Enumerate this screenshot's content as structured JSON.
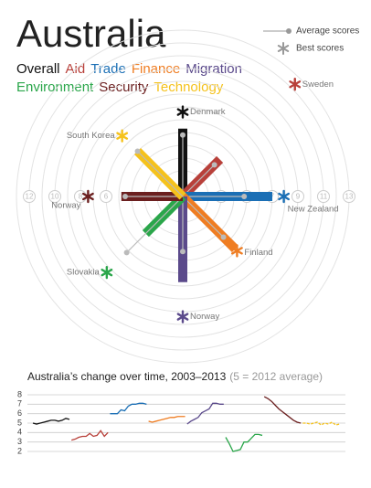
{
  "chart_data": [
    {
      "type": "radial",
      "title": "Australia",
      "legend": {
        "average": "Average scores",
        "best": "Best scores"
      },
      "rings": [
        1,
        2,
        3,
        4,
        5,
        6,
        7,
        8,
        9,
        10,
        11,
        12,
        13
      ],
      "left_ticks": [
        12,
        10,
        8,
        6
      ],
      "right_ticks": [
        3,
        5,
        7,
        9,
        11,
        13
      ],
      "categories": [
        {
          "name": "Overall",
          "color": "#111111",
          "score": 5.3,
          "average": 4.8,
          "best": 6.6,
          "best_country": "Denmark"
        },
        {
          "name": "Aid",
          "color": "#b8403a",
          "score": 4.1,
          "average": 3.5,
          "best": 12.4,
          "best_country": "Sweden"
        },
        {
          "name": "Trade",
          "color": "#1b6fb5",
          "score": 7.0,
          "average": 4.8,
          "best": 7.9,
          "best_country": "New Zealand"
        },
        {
          "name": "Finance",
          "color": "#ef7d22",
          "score": 5.8,
          "average": 4.5,
          "best": 6.0,
          "best_country": "Finland"
        },
        {
          "name": "Migration",
          "color": "#5b4a8b",
          "score": 6.7,
          "average": 4.3,
          "best": 9.4,
          "best_country": "Norway"
        },
        {
          "name": "Environment",
          "color": "#2aa64a",
          "score": 4.1,
          "average": 6.2,
          "best": 8.4,
          "best_country": "Slovakia"
        },
        {
          "name": "Security",
          "color": "#6b1f1f",
          "score": 4.8,
          "average": 4.5,
          "best": 7.4,
          "best_country": "Norway"
        },
        {
          "name": "Technology",
          "color": "#f5c21c",
          "score": 5.0,
          "average": 5.0,
          "best": 6.7,
          "best_country": "South Korea"
        }
      ]
    },
    {
      "type": "line",
      "title": "Australia’s change over time, 2003–2013",
      "subtitle": "(5 = 2012 average)",
      "ylim": [
        2,
        8
      ],
      "yticks": [
        2,
        3,
        4,
        5,
        6,
        7,
        8
      ],
      "grid": true,
      "series": [
        {
          "color": "#111111",
          "values": [
            5.0,
            4.9,
            5.0,
            5.1,
            5.2,
            5.3,
            5.3,
            5.2,
            5.3,
            5.5,
            5.4
          ]
        },
        {
          "color": "#b8403a",
          "values": [
            3.2,
            3.3,
            3.5,
            3.6,
            3.6,
            3.9,
            3.6,
            3.7,
            4.2,
            3.6,
            4.0
          ]
        },
        {
          "color": "#1b6fb5",
          "values": [
            6.0,
            6.0,
            6.0,
            6.4,
            6.3,
            6.8,
            7.0,
            7.0,
            7.1,
            7.1,
            7.0
          ]
        },
        {
          "color": "#ef7d22",
          "values": [
            5.2,
            5.1,
            5.2,
            5.3,
            5.4,
            5.5,
            5.6,
            5.6,
            5.7,
            5.7,
            5.7
          ]
        },
        {
          "color": "#5b4a8b",
          "values": [
            4.9,
            5.2,
            5.4,
            5.6,
            6.1,
            6.3,
            6.5,
            7.1,
            7.1,
            7.0,
            7.0
          ]
        },
        {
          "color": "#2aa64a",
          "values": [
            3.5,
            2.8,
            2.0,
            2.1,
            2.2,
            3.0,
            3.0,
            3.4,
            3.8,
            3.8,
            3.7
          ]
        },
        {
          "color": "#6b1f1f",
          "values": [
            7.8,
            7.6,
            7.3,
            6.9,
            6.5,
            6.2,
            5.9,
            5.6,
            5.3,
            5.1,
            5.0
          ]
        },
        {
          "color": "#f5c21c",
          "values": [
            5.0,
            5.0,
            4.9,
            5.0,
            5.1,
            4.8,
            5.0,
            4.9,
            5.1,
            4.8,
            4.9
          ],
          "dashed": true
        }
      ]
    }
  ]
}
